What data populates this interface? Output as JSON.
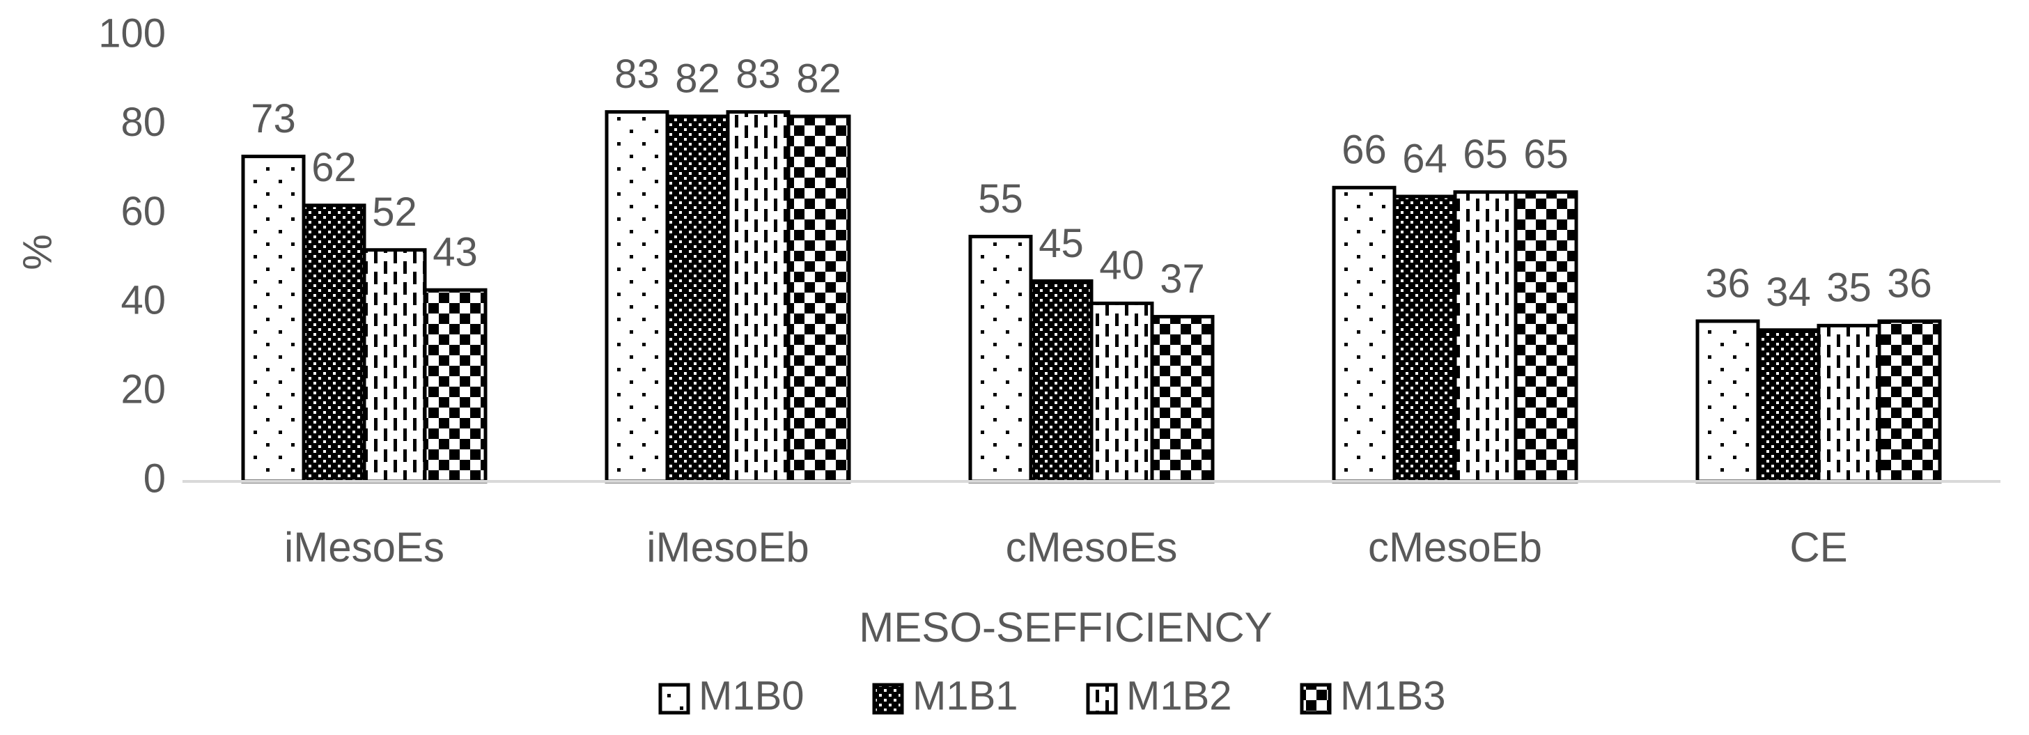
{
  "chart_data": {
    "type": "bar",
    "categories": [
      "iMesoEs",
      "iMesoEb",
      "cMesoEs",
      "cMesoEb",
      "CE"
    ],
    "series": [
      {
        "name": "M1B0",
        "color": "#000000",
        "pattern": "dots",
        "values": [
          73,
          83,
          55,
          66,
          36
        ]
      },
      {
        "name": "M1B1",
        "color": "#000000",
        "pattern": "dense-dots",
        "values": [
          62,
          82,
          45,
          64,
          34
        ]
      },
      {
        "name": "M1B2",
        "color": "#000000",
        "pattern": "vertical-dashes",
        "values": [
          52,
          83,
          40,
          65,
          35
        ]
      },
      {
        "name": "M1B3",
        "color": "#000000",
        "pattern": "checker",
        "values": [
          43,
          82,
          37,
          65,
          36
        ]
      }
    ],
    "x_label": "MESO-SEFFICIENCY",
    "y_label": "%",
    "ylim": [
      0,
      100
    ],
    "yticks": [
      0,
      20,
      40,
      60,
      80,
      100
    ],
    "legend": "bottom",
    "data_labels": true
  }
}
